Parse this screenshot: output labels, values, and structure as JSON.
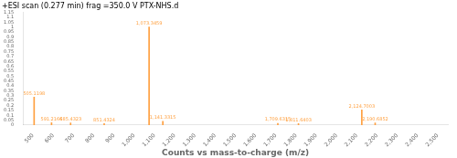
{
  "chart_data": {
    "type": "bar",
    "title": "+ESI scan (0.277 min) frag =350.0 V PTX-NHS.d",
    "xlabel": "Counts vs mass-to-charge (m/z)",
    "x": [
      505.1198,
      591.2166,
      685.4323,
      851.4324,
      1073.3459,
      1141.3315,
      1709.6315,
      1811.6403,
      2124.7003,
      2190.6852
    ],
    "values": [
      0.285,
      0.025,
      0.022,
      0.015,
      1.0,
      0.038,
      0.018,
      0.015,
      0.155,
      0.022
    ],
    "annotations": [
      "505.1198",
      "591.2166",
      "685.4323",
      "851.4324",
      "1,073.3459",
      "1,141.3315",
      "1,709.6315",
      "1,811.6403",
      "2,124.7003",
      "2,190.6852"
    ],
    "color": "#FFA040",
    "xlim": [
      450,
      2550
    ],
    "xticks": [
      500,
      600,
      700,
      800,
      900,
      {
        "value": 1000,
        "label": "1,000"
      },
      {
        "value": 1100,
        "label": "1,100"
      },
      {
        "value": 1200,
        "label": "1,200"
      },
      {
        "value": 1300,
        "label": "1,300"
      },
      {
        "value": 1400,
        "label": "1,400"
      },
      {
        "value": 1500,
        "label": "1,500"
      },
      {
        "value": 1600,
        "label": "1,600"
      },
      {
        "value": 1700,
        "label": "1,700"
      },
      {
        "value": 1800,
        "label": "1,800"
      },
      {
        "value": 1900,
        "label": "1,900"
      },
      {
        "value": 2000,
        "label": "2,000"
      },
      {
        "value": 2100,
        "label": "2,100"
      },
      {
        "value": 2200,
        "label": "2,200"
      },
      {
        "value": 2300,
        "label": "2,300"
      },
      {
        "value": 2400,
        "label": "2,400"
      },
      {
        "value": 2500,
        "label": "2,500"
      }
    ],
    "ylim": [
      0,
      1.15
    ],
    "yticks": [
      0,
      0.05,
      0.1,
      0.15,
      0.2,
      0.25,
      0.3,
      0.35,
      0.4,
      0.45,
      0.5,
      0.55,
      0.6,
      0.65,
      0.7,
      0.75,
      0.8,
      0.85,
      0.9,
      0.95,
      1,
      1.05,
      1.1,
      1.15
    ],
    "grid": false
  }
}
